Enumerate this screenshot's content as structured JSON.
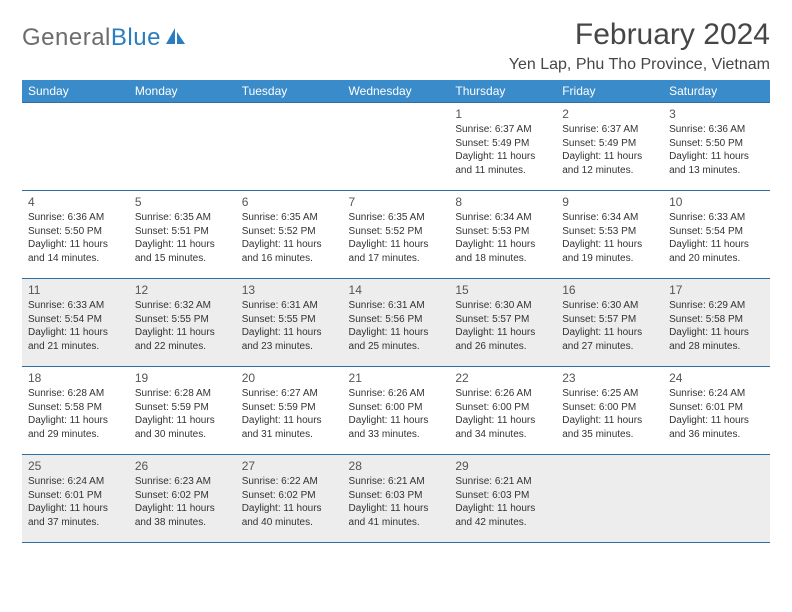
{
  "logo": {
    "gray_text": "General",
    "blue_text": "Blue",
    "icon_color": "#2b7dbf"
  },
  "header": {
    "title": "February 2024",
    "location": "Yen Lap, Phu Tho Province, Vietnam"
  },
  "colors": {
    "header_bg": "#3a8bc9",
    "header_text": "#ffffff",
    "row_border": "#2e6fa3",
    "shaded_bg": "#ededed",
    "body_text": "#333333"
  },
  "weekdays": [
    "Sunday",
    "Monday",
    "Tuesday",
    "Wednesday",
    "Thursday",
    "Friday",
    "Saturday"
  ],
  "weeks": [
    [
      {
        "day": "",
        "sunrise": "",
        "sunset": "",
        "daylight": ""
      },
      {
        "day": "",
        "sunrise": "",
        "sunset": "",
        "daylight": ""
      },
      {
        "day": "",
        "sunrise": "",
        "sunset": "",
        "daylight": ""
      },
      {
        "day": "",
        "sunrise": "",
        "sunset": "",
        "daylight": ""
      },
      {
        "day": "1",
        "sunrise": "Sunrise: 6:37 AM",
        "sunset": "Sunset: 5:49 PM",
        "daylight": "Daylight: 11 hours and 11 minutes."
      },
      {
        "day": "2",
        "sunrise": "Sunrise: 6:37 AM",
        "sunset": "Sunset: 5:49 PM",
        "daylight": "Daylight: 11 hours and 12 minutes."
      },
      {
        "day": "3",
        "sunrise": "Sunrise: 6:36 AM",
        "sunset": "Sunset: 5:50 PM",
        "daylight": "Daylight: 11 hours and 13 minutes."
      }
    ],
    [
      {
        "day": "4",
        "sunrise": "Sunrise: 6:36 AM",
        "sunset": "Sunset: 5:50 PM",
        "daylight": "Daylight: 11 hours and 14 minutes."
      },
      {
        "day": "5",
        "sunrise": "Sunrise: 6:35 AM",
        "sunset": "Sunset: 5:51 PM",
        "daylight": "Daylight: 11 hours and 15 minutes."
      },
      {
        "day": "6",
        "sunrise": "Sunrise: 6:35 AM",
        "sunset": "Sunset: 5:52 PM",
        "daylight": "Daylight: 11 hours and 16 minutes."
      },
      {
        "day": "7",
        "sunrise": "Sunrise: 6:35 AM",
        "sunset": "Sunset: 5:52 PM",
        "daylight": "Daylight: 11 hours and 17 minutes."
      },
      {
        "day": "8",
        "sunrise": "Sunrise: 6:34 AM",
        "sunset": "Sunset: 5:53 PM",
        "daylight": "Daylight: 11 hours and 18 minutes."
      },
      {
        "day": "9",
        "sunrise": "Sunrise: 6:34 AM",
        "sunset": "Sunset: 5:53 PM",
        "daylight": "Daylight: 11 hours and 19 minutes."
      },
      {
        "day": "10",
        "sunrise": "Sunrise: 6:33 AM",
        "sunset": "Sunset: 5:54 PM",
        "daylight": "Daylight: 11 hours and 20 minutes."
      }
    ],
    [
      {
        "day": "11",
        "sunrise": "Sunrise: 6:33 AM",
        "sunset": "Sunset: 5:54 PM",
        "daylight": "Daylight: 11 hours and 21 minutes."
      },
      {
        "day": "12",
        "sunrise": "Sunrise: 6:32 AM",
        "sunset": "Sunset: 5:55 PM",
        "daylight": "Daylight: 11 hours and 22 minutes."
      },
      {
        "day": "13",
        "sunrise": "Sunrise: 6:31 AM",
        "sunset": "Sunset: 5:55 PM",
        "daylight": "Daylight: 11 hours and 23 minutes."
      },
      {
        "day": "14",
        "sunrise": "Sunrise: 6:31 AM",
        "sunset": "Sunset: 5:56 PM",
        "daylight": "Daylight: 11 hours and 25 minutes."
      },
      {
        "day": "15",
        "sunrise": "Sunrise: 6:30 AM",
        "sunset": "Sunset: 5:57 PM",
        "daylight": "Daylight: 11 hours and 26 minutes."
      },
      {
        "day": "16",
        "sunrise": "Sunrise: 6:30 AM",
        "sunset": "Sunset: 5:57 PM",
        "daylight": "Daylight: 11 hours and 27 minutes."
      },
      {
        "day": "17",
        "sunrise": "Sunrise: 6:29 AM",
        "sunset": "Sunset: 5:58 PM",
        "daylight": "Daylight: 11 hours and 28 minutes."
      }
    ],
    [
      {
        "day": "18",
        "sunrise": "Sunrise: 6:28 AM",
        "sunset": "Sunset: 5:58 PM",
        "daylight": "Daylight: 11 hours and 29 minutes."
      },
      {
        "day": "19",
        "sunrise": "Sunrise: 6:28 AM",
        "sunset": "Sunset: 5:59 PM",
        "daylight": "Daylight: 11 hours and 30 minutes."
      },
      {
        "day": "20",
        "sunrise": "Sunrise: 6:27 AM",
        "sunset": "Sunset: 5:59 PM",
        "daylight": "Daylight: 11 hours and 31 minutes."
      },
      {
        "day": "21",
        "sunrise": "Sunrise: 6:26 AM",
        "sunset": "Sunset: 6:00 PM",
        "daylight": "Daylight: 11 hours and 33 minutes."
      },
      {
        "day": "22",
        "sunrise": "Sunrise: 6:26 AM",
        "sunset": "Sunset: 6:00 PM",
        "daylight": "Daylight: 11 hours and 34 minutes."
      },
      {
        "day": "23",
        "sunrise": "Sunrise: 6:25 AM",
        "sunset": "Sunset: 6:00 PM",
        "daylight": "Daylight: 11 hours and 35 minutes."
      },
      {
        "day": "24",
        "sunrise": "Sunrise: 6:24 AM",
        "sunset": "Sunset: 6:01 PM",
        "daylight": "Daylight: 11 hours and 36 minutes."
      }
    ],
    [
      {
        "day": "25",
        "sunrise": "Sunrise: 6:24 AM",
        "sunset": "Sunset: 6:01 PM",
        "daylight": "Daylight: 11 hours and 37 minutes."
      },
      {
        "day": "26",
        "sunrise": "Sunrise: 6:23 AM",
        "sunset": "Sunset: 6:02 PM",
        "daylight": "Daylight: 11 hours and 38 minutes."
      },
      {
        "day": "27",
        "sunrise": "Sunrise: 6:22 AM",
        "sunset": "Sunset: 6:02 PM",
        "daylight": "Daylight: 11 hours and 40 minutes."
      },
      {
        "day": "28",
        "sunrise": "Sunrise: 6:21 AM",
        "sunset": "Sunset: 6:03 PM",
        "daylight": "Daylight: 11 hours and 41 minutes."
      },
      {
        "day": "29",
        "sunrise": "Sunrise: 6:21 AM",
        "sunset": "Sunset: 6:03 PM",
        "daylight": "Daylight: 11 hours and 42 minutes."
      },
      {
        "day": "",
        "sunrise": "",
        "sunset": "",
        "daylight": ""
      },
      {
        "day": "",
        "sunrise": "",
        "sunset": "",
        "daylight": ""
      }
    ]
  ],
  "shaded_rows": [
    2,
    4
  ]
}
